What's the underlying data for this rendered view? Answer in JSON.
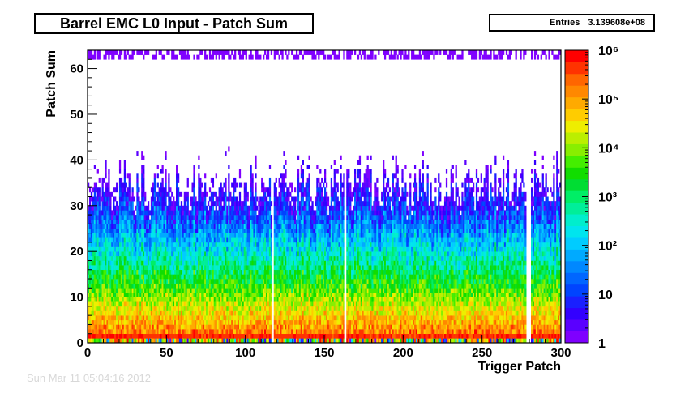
{
  "chart_data": {
    "type": "heatmap",
    "title": "Barrel EMC L0 Input - Patch Sum",
    "xlabel": "Trigger Patch",
    "ylabel": "Patch Sum",
    "xlim": [
      0,
      300
    ],
    "ylim": [
      0,
      64
    ],
    "x_ticks": [
      0,
      50,
      100,
      150,
      200,
      250,
      300
    ],
    "y_ticks": [
      0,
      10,
      20,
      30,
      40,
      50,
      60
    ],
    "colorbar": {
      "scale": "log",
      "range": [
        1,
        1000000
      ],
      "tick_labels": [
        "1",
        "10",
        "10²",
        "10³",
        "10⁴",
        "10⁵",
        "10⁶"
      ],
      "palette": [
        "#7f00ff",
        "#5a00ff",
        "#3300ff",
        "#1a20ff",
        "#0044ff",
        "#0066ff",
        "#0088ff",
        "#00aaff",
        "#00ccff",
        "#00e5ee",
        "#00eecc",
        "#00ee99",
        "#00ee66",
        "#00dd33",
        "#11dd00",
        "#44ee00",
        "#88ee00",
        "#bbee00",
        "#eeee00",
        "#ffcc00",
        "#ffaa00",
        "#ff8800",
        "#ff6600",
        "#ff3300",
        "#ff0000"
      ]
    },
    "stats": {
      "label": "Entries",
      "value": "3.139608e+08"
    },
    "empty_columns": [
      117,
      163,
      278,
      279,
      280
    ]
  },
  "footer": {
    "date": "Sun Mar 11 05:04:16 2012"
  }
}
